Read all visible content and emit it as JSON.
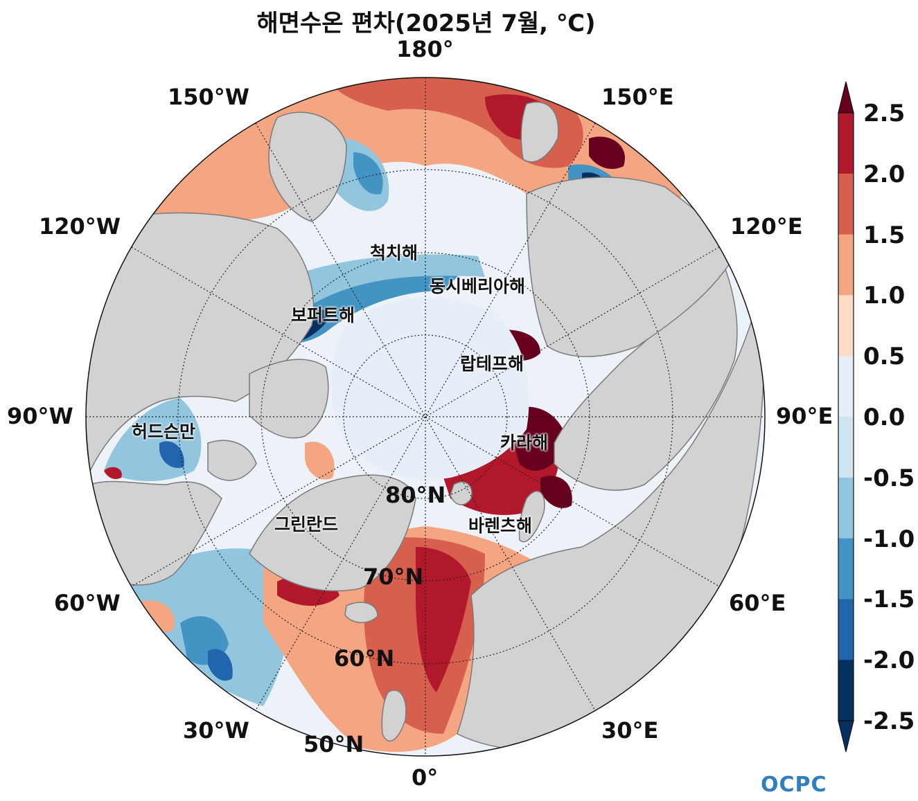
{
  "title": "해면수온 편차(2025년 7월, ℃)",
  "longitude_labels": {
    "lon_180": "180°",
    "lon_150w": "150°W",
    "lon_150e": "150°E",
    "lon_120w": "120°W",
    "lon_120e": "120°E",
    "lon_90w": "90°W",
    "lon_90e": "90°E",
    "lon_60w": "60°W",
    "lon_60e": "60°E",
    "lon_30w": "30°W",
    "lon_30e": "30°E",
    "lon_0": "0°"
  },
  "latitude_labels": {
    "lat_80": "80°N",
    "lat_70": "70°N",
    "lat_60": "60°N",
    "lat_50": "50°N"
  },
  "sea_labels": {
    "chukchi": "척치해",
    "east_siberian": "동시베리아해",
    "beaufort": "보퍼트해",
    "laptev": "랍테프해",
    "hudson": "허드슨만",
    "kara": "카라해",
    "greenland": "그린란드",
    "barents": "바렌츠해"
  },
  "colorbar": {
    "ticks": [
      "2.5",
      "2.0",
      "1.5",
      "1.0",
      "0.5",
      "0.0",
      "-0.5",
      "-1.0",
      "-1.5",
      "-2.0",
      "-2.5"
    ],
    "colors": [
      "#67001f",
      "#b2182b",
      "#d6604d",
      "#f4a582",
      "#fddbc7",
      "#e6eef7",
      "#d1e5f0",
      "#92c5de",
      "#4393c3",
      "#2166ac",
      "#053061"
    ]
  },
  "logo_text": "OCPC",
  "colors": {
    "land": "#d2d2d2",
    "coast": "#7a7a7a",
    "ice_neutral": "#e6eef7"
  }
}
